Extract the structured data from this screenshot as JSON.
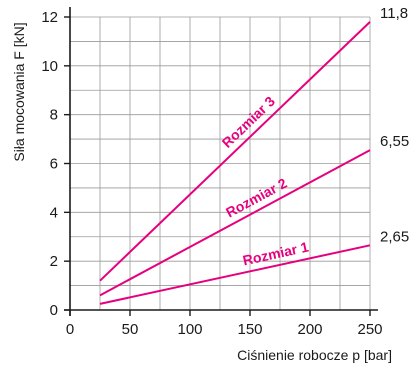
{
  "chart_data": {
    "type": "line",
    "xlabel": "Ciśnienie robocze p [bar]",
    "ylabel": "Siła mocowania F [kN]",
    "xlim": [
      0,
      250
    ],
    "ylim": [
      0,
      12
    ],
    "xticks": [
      0,
      50,
      100,
      150,
      200,
      250
    ],
    "yticks": [
      0,
      2,
      4,
      6,
      8,
      10,
      12
    ],
    "grid": true,
    "line_color": "#e6007e",
    "series": [
      {
        "name": "Rozmiar 1",
        "x": [
          25,
          250
        ],
        "y": [
          0.25,
          2.65
        ],
        "end_label": "2,65"
      },
      {
        "name": "Rozmiar 2",
        "x": [
          25,
          250
        ],
        "y": [
          0.6,
          6.55
        ],
        "end_label": "6,55"
      },
      {
        "name": "Rozmiar 3",
        "x": [
          25,
          250
        ],
        "y": [
          1.2,
          11.8
        ],
        "end_label": "11,8"
      }
    ]
  }
}
